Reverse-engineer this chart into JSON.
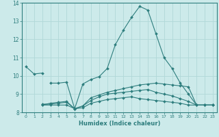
{
  "xlabel": "Humidex (Indice chaleur)",
  "x_values": [
    0,
    1,
    2,
    3,
    4,
    5,
    6,
    7,
    8,
    9,
    10,
    11,
    12,
    13,
    14,
    15,
    16,
    17,
    18,
    19,
    20,
    21,
    22,
    23
  ],
  "lines": [
    [
      10.5,
      10.1,
      10.15,
      null,
      null,
      null,
      null,
      null,
      null,
      null,
      null,
      null,
      null,
      null,
      null,
      null,
      null,
      null,
      null,
      null,
      null,
      null,
      null,
      null
    ],
    [
      null,
      null,
      null,
      9.6,
      9.6,
      9.65,
      8.2,
      9.55,
      9.8,
      9.95,
      10.4,
      11.7,
      12.5,
      13.2,
      13.8,
      13.6,
      12.3,
      11.0,
      10.4,
      9.6,
      9.0,
      8.4,
      8.4,
      8.4
    ],
    [
      null,
      null,
      8.4,
      8.4,
      8.4,
      8.4,
      8.2,
      8.25,
      8.5,
      8.6,
      8.7,
      8.75,
      8.8,
      8.85,
      8.75,
      8.7,
      8.65,
      8.6,
      8.55,
      8.5,
      8.4,
      8.4,
      8.4,
      8.4
    ],
    [
      null,
      null,
      8.4,
      8.5,
      8.55,
      8.6,
      8.2,
      8.35,
      8.8,
      8.95,
      9.1,
      9.2,
      9.3,
      9.4,
      9.5,
      9.55,
      9.6,
      9.55,
      9.5,
      9.45,
      9.4,
      8.4,
      8.4,
      8.4
    ],
    [
      null,
      null,
      8.45,
      8.45,
      8.5,
      8.55,
      8.2,
      8.35,
      8.65,
      8.85,
      9.0,
      9.05,
      9.1,
      9.15,
      9.2,
      9.25,
      9.1,
      9.0,
      8.9,
      8.75,
      8.6,
      8.4,
      8.4,
      8.4
    ]
  ],
  "color": "#2d7d7d",
  "bg_color": "#cceaea",
  "grid_color": "#b0d8d8",
  "ylim": [
    8.0,
    14.0
  ],
  "xlim": [
    -0.5,
    23.5
  ],
  "yticks": [
    8,
    9,
    10,
    11,
    12,
    13,
    14
  ],
  "xticks": [
    0,
    1,
    2,
    3,
    4,
    5,
    6,
    7,
    8,
    9,
    10,
    11,
    12,
    13,
    14,
    15,
    16,
    17,
    18,
    19,
    20,
    21,
    22,
    23
  ]
}
